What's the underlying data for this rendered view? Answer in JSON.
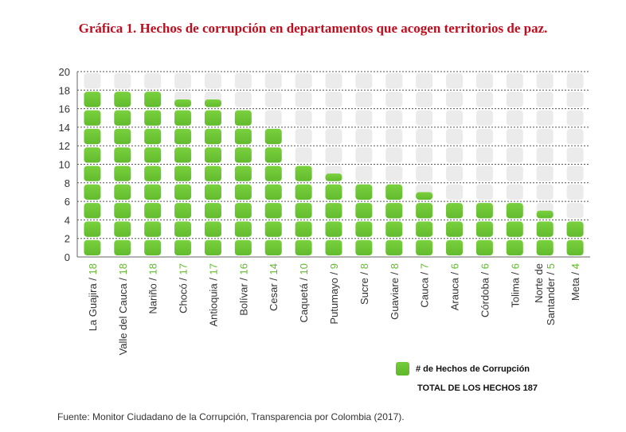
{
  "title": "Gráfica 1. Hechos de corrupción en departamentos que acogen territorios de paz.",
  "source": "Fuente: Monitor Ciudadano de la Corrupción, Transparencia por Colombia (2017).",
  "legend": {
    "label": "# de Hechos de Corrupción"
  },
  "total": "TOTAL DE LOS HECHOS 187",
  "colors": {
    "bar": "#62bb2e",
    "empty": "#ebebeb",
    "value_label": "#62bb2e",
    "title": "#c00d1e"
  },
  "chart_data": {
    "type": "bar",
    "categories": [
      "La Guajira",
      "Valle del Cauca",
      "Nariño",
      "Chocó",
      "Antioquia",
      "Bolívar",
      "Cesar",
      "Caquetá",
      "Putumayo",
      "Sucre",
      "Guaviare",
      "Cauca",
      "Arauca",
      "Córdoba",
      "Tolima",
      "Norte de Santander",
      "Meta"
    ],
    "category_lines": [
      [
        "La Guajira"
      ],
      [
        "Valle del Cauca"
      ],
      [
        "Nariño"
      ],
      [
        "Chocó"
      ],
      [
        "Antioquia"
      ],
      [
        "Bolívar"
      ],
      [
        "Cesar"
      ],
      [
        "Caquetá"
      ],
      [
        "Putumayo"
      ],
      [
        "Sucre"
      ],
      [
        "Guaviare"
      ],
      [
        "Cauca"
      ],
      [
        "Arauca"
      ],
      [
        "Córdoba"
      ],
      [
        "Tolima"
      ],
      [
        "Norte de",
        "Santander"
      ],
      [
        "Meta"
      ]
    ],
    "values": [
      18,
      18,
      18,
      17,
      17,
      16,
      14,
      10,
      9,
      8,
      8,
      7,
      6,
      6,
      6,
      5,
      4
    ],
    "series": [
      {
        "name": "# de Hechos de Corrupción",
        "values": [
          18,
          18,
          18,
          17,
          17,
          16,
          14,
          10,
          9,
          8,
          8,
          7,
          6,
          6,
          6,
          5,
          4
        ]
      }
    ],
    "ylim": [
      0,
      20
    ],
    "yticks": [
      0,
      2,
      4,
      6,
      8,
      10,
      12,
      14,
      16,
      18,
      20
    ],
    "grid": true,
    "legend_position": "bottom-right"
  }
}
